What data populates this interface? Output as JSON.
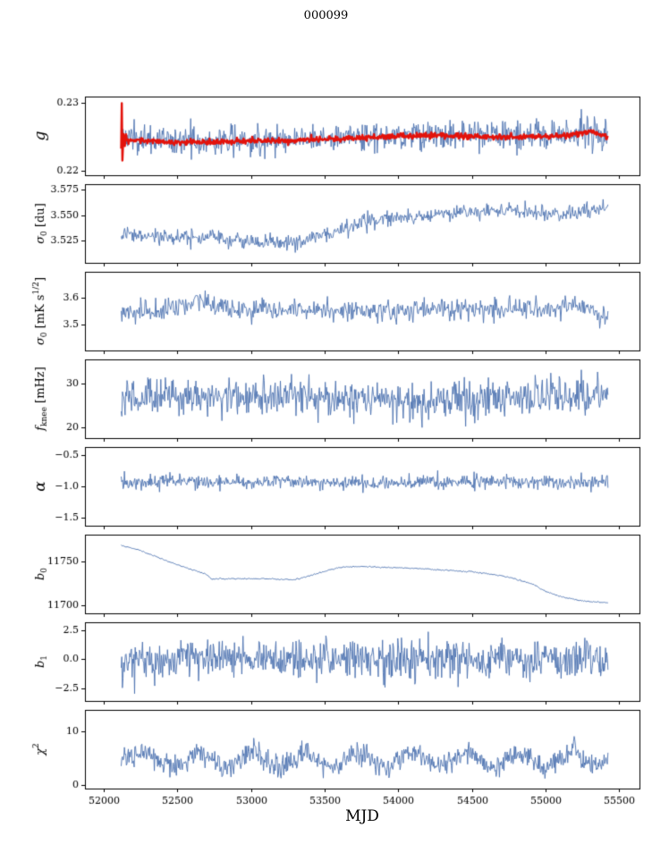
{
  "chart_data": {
    "type": "line",
    "title": "000099",
    "xlabel": "MJD",
    "xlim": [
      51872,
      55639
    ],
    "x_data_range": [
      52118,
      55425
    ],
    "xticks": [
      {
        "v": 52000,
        "label": "52000"
      },
      {
        "v": 52500,
        "label": "52500"
      },
      {
        "v": 53000,
        "label": "53000"
      },
      {
        "v": 53500,
        "label": "53500"
      },
      {
        "v": 54000,
        "label": "54000"
      },
      {
        "v": 54500,
        "label": "54500"
      },
      {
        "v": 55000,
        "label": "55000"
      },
      {
        "v": 55500,
        "label": "55500"
      }
    ],
    "grid": false,
    "legend": "none",
    "panels": [
      {
        "name": "g",
        "ylabel": [
          {
            "t": "g",
            "italic": true
          }
        ],
        "ylim": [
          0.2193,
          0.2309
        ],
        "yticks": [
          {
            "v": 0.22,
            "label": "0.22"
          },
          {
            "v": 0.23,
            "label": "0.23"
          }
        ],
        "series": [
          {
            "color": "#4c72b0",
            "lw": 0.9,
            "n": 750,
            "noise": 0.0011,
            "keypoints": [
              [
                52120,
                0.2248
              ],
              [
                52400,
                0.2244
              ],
              [
                52700,
                0.2243
              ],
              [
                53000,
                0.2245
              ],
              [
                53400,
                0.2247
              ],
              [
                53800,
                0.2251
              ],
              [
                54200,
                0.2253
              ],
              [
                54600,
                0.2251
              ],
              [
                55000,
                0.2252
              ],
              [
                55200,
                0.2254
              ],
              [
                55350,
                0.2258
              ],
              [
                55425,
                0.2252
              ]
            ]
          },
          {
            "color": "#e3120b",
            "lw": 2.4,
            "n": 800,
            "noise": 0.0002,
            "keypoints": [
              [
                52118,
                0.2232
              ],
              [
                52122,
                0.23
              ],
              [
                52127,
                0.2205
              ],
              [
                52133,
                0.2262
              ],
              [
                52141,
                0.2238
              ],
              [
                52152,
                0.2252
              ],
              [
                52166,
                0.224
              ],
              [
                52200,
                0.2245
              ],
              [
                52400,
                0.2242
              ],
              [
                52700,
                0.2242
              ],
              [
                53000,
                0.2243
              ],
              [
                53300,
                0.2245
              ],
              [
                53600,
                0.2247
              ],
              [
                53900,
                0.225
              ],
              [
                54200,
                0.2252
              ],
              [
                54500,
                0.225
              ],
              [
                54800,
                0.2249
              ],
              [
                55000,
                0.225
              ],
              [
                55150,
                0.2252
              ],
              [
                55300,
                0.2257
              ],
              [
                55380,
                0.2252
              ],
              [
                55425,
                0.2248
              ]
            ]
          }
        ]
      },
      {
        "name": "sigma0_du",
        "ylabel": [
          {
            "t": "σ",
            "italic": true
          },
          {
            "t": "0",
            "sub": true
          },
          {
            "t": " [du]"
          }
        ],
        "ylim": [
          3.5035,
          3.5805
        ],
        "yticks": [
          {
            "v": 3.525,
            "label": "3.525"
          },
          {
            "v": 3.55,
            "label": "3.550"
          },
          {
            "v": 3.575,
            "label": "3.575"
          }
        ],
        "series": [
          {
            "color": "#4c72b0",
            "lw": 0.9,
            "n": 700,
            "noise": 0.0038,
            "keypoints": [
              [
                52120,
                3.531
              ],
              [
                52300,
                3.529
              ],
              [
                52600,
                3.527
              ],
              [
                52900,
                3.526
              ],
              [
                53100,
                3.524
              ],
              [
                53300,
                3.523
              ],
              [
                53450,
                3.528
              ],
              [
                53600,
                3.534
              ],
              [
                53800,
                3.545
              ],
              [
                54000,
                3.549
              ],
              [
                54200,
                3.55
              ],
              [
                54400,
                3.553
              ],
              [
                54600,
                3.554
              ],
              [
                54800,
                3.556
              ],
              [
                54950,
                3.552
              ],
              [
                55100,
                3.551
              ],
              [
                55250,
                3.553
              ],
              [
                55425,
                3.557
              ]
            ]
          }
        ]
      },
      {
        "name": "sigma0_mks",
        "ylabel": [
          {
            "t": "σ",
            "italic": true
          },
          {
            "t": "0",
            "sub": true
          },
          {
            "t": " [mK s"
          },
          {
            "t": "1/2",
            "sup": true
          },
          {
            "t": "]"
          }
        ],
        "ylim": [
          3.4,
          3.7
        ],
        "yticks": [
          {
            "v": 3.5,
            "label": "3.5"
          },
          {
            "v": 3.6,
            "label": "3.6"
          }
        ],
        "series": [
          {
            "color": "#4c72b0",
            "lw": 0.9,
            "n": 650,
            "noise": 0.021,
            "keypoints": [
              [
                52120,
                3.545
              ],
              [
                52400,
                3.555
              ],
              [
                52700,
                3.595
              ],
              [
                52760,
                3.56
              ],
              [
                53000,
                3.55
              ],
              [
                53400,
                3.555
              ],
              [
                53800,
                3.55
              ],
              [
                54200,
                3.555
              ],
              [
                54600,
                3.56
              ],
              [
                55000,
                3.555
              ],
              [
                55200,
                3.57
              ],
              [
                55425,
                3.54
              ]
            ]
          }
        ]
      },
      {
        "name": "f_knee",
        "ylabel": [
          {
            "t": "f",
            "italic": true
          },
          {
            "t": "knee",
            "sub": true
          },
          {
            "t": " [mHz]"
          }
        ],
        "ylim": [
          17.5,
          35.5
        ],
        "yticks": [
          {
            "v": 20,
            "label": "20"
          },
          {
            "v": 30,
            "label": "30"
          }
        ],
        "series": [
          {
            "color": "#4c72b0",
            "lw": 0.9,
            "n": 750,
            "noise": 2.1,
            "keypoints": [
              [
                52120,
                26.5
              ],
              [
                52500,
                27.0
              ],
              [
                53000,
                27.0
              ],
              [
                53500,
                27.0
              ],
              [
                54000,
                26.5
              ],
              [
                54500,
                27.0
              ],
              [
                55000,
                27.0
              ],
              [
                55425,
                27.5
              ]
            ]
          }
        ]
      },
      {
        "name": "alpha",
        "ylabel": [
          {
            "t": "α",
            "italic": true
          }
        ],
        "ylim": [
          -1.62,
          -0.38
        ],
        "yticks": [
          {
            "v": -1.5,
            "label": "−1.5"
          },
          {
            "v": -1.0,
            "label": "−1.0"
          },
          {
            "v": -0.5,
            "label": "−0.5"
          }
        ],
        "series": [
          {
            "color": "#4c72b0",
            "lw": 0.9,
            "n": 750,
            "noise": 0.055,
            "keypoints": [
              [
                52120,
                -0.93
              ],
              [
                53000,
                -0.93
              ],
              [
                54000,
                -0.94
              ],
              [
                55000,
                -0.93
              ],
              [
                55425,
                -0.93
              ]
            ]
          }
        ]
      },
      {
        "name": "b0",
        "ylabel": [
          {
            "t": "b",
            "italic": true
          },
          {
            "t": "0",
            "sub": true
          }
        ],
        "ylim": [
          11691,
          11780
        ],
        "yticks": [
          {
            "v": 11700,
            "label": "11700"
          },
          {
            "v": 11750,
            "label": "11750"
          }
        ],
        "series": [
          {
            "color": "#4c72b0",
            "lw": 0.9,
            "n": 500,
            "noise": 0.35,
            "keypoints": [
              [
                52118,
                11768
              ],
              [
                52250,
                11762
              ],
              [
                52400,
                11752
              ],
              [
                52550,
                11743
              ],
              [
                52700,
                11735
              ],
              [
                52730,
                11730
              ],
              [
                52900,
                11730
              ],
              [
                53100,
                11730
              ],
              [
                53300,
                11729
              ],
              [
                53450,
                11736
              ],
              [
                53600,
                11743
              ],
              [
                53750,
                11744
              ],
              [
                53900,
                11743
              ],
              [
                54100,
                11742
              ],
              [
                54300,
                11740
              ],
              [
                54500,
                11738
              ],
              [
                54700,
                11734
              ],
              [
                54900,
                11725
              ],
              [
                55000,
                11716
              ],
              [
                55100,
                11710
              ],
              [
                55250,
                11705
              ],
              [
                55425,
                11703
              ]
            ]
          }
        ]
      },
      {
        "name": "b1",
        "ylabel": [
          {
            "t": "b",
            "italic": true
          },
          {
            "t": "1",
            "sub": true
          }
        ],
        "ylim": [
          -3.6,
          3.2
        ],
        "yticks": [
          {
            "v": -2.5,
            "label": "−2.5"
          },
          {
            "v": 0.0,
            "label": "0.0"
          },
          {
            "v": 2.5,
            "label": "2.5"
          }
        ],
        "series": [
          {
            "color": "#4c72b0",
            "lw": 0.9,
            "n": 800,
            "noise": 0.85,
            "keypoints": [
              [
                52120,
                -0.1
              ],
              [
                53000,
                0.0
              ],
              [
                54000,
                0.0
              ],
              [
                55425,
                0.0
              ]
            ]
          }
        ]
      },
      {
        "name": "chi2",
        "ylabel": [
          {
            "t": "χ",
            "italic": true
          },
          {
            "t": "2",
            "sup": true
          }
        ],
        "ylim": [
          -0.7,
          14.0
        ],
        "yticks": [
          {
            "v": 0,
            "label": "0"
          },
          {
            "v": 10,
            "label": "10"
          }
        ],
        "series": [
          {
            "color": "#4c72b0",
            "lw": 0.9,
            "n": 750,
            "noise": 1.05,
            "keypoints": [
              [
                52120,
                4.0
              ],
              [
                52300,
                6.2
              ],
              [
                52480,
                3.0
              ],
              [
                52660,
                6.2
              ],
              [
                52840,
                3.0
              ],
              [
                53020,
                6.2
              ],
              [
                53200,
                3.0
              ],
              [
                53380,
                6.2
              ],
              [
                53560,
                3.0
              ],
              [
                53740,
                6.2
              ],
              [
                53920,
                3.0
              ],
              [
                54100,
                6.2
              ],
              [
                54280,
                3.0
              ],
              [
                54460,
                6.2
              ],
              [
                54640,
                3.0
              ],
              [
                54820,
                6.2
              ],
              [
                55000,
                3.0
              ],
              [
                55180,
                6.2
              ],
              [
                55360,
                3.5
              ],
              [
                55425,
                4.5
              ]
            ]
          }
        ]
      }
    ]
  }
}
